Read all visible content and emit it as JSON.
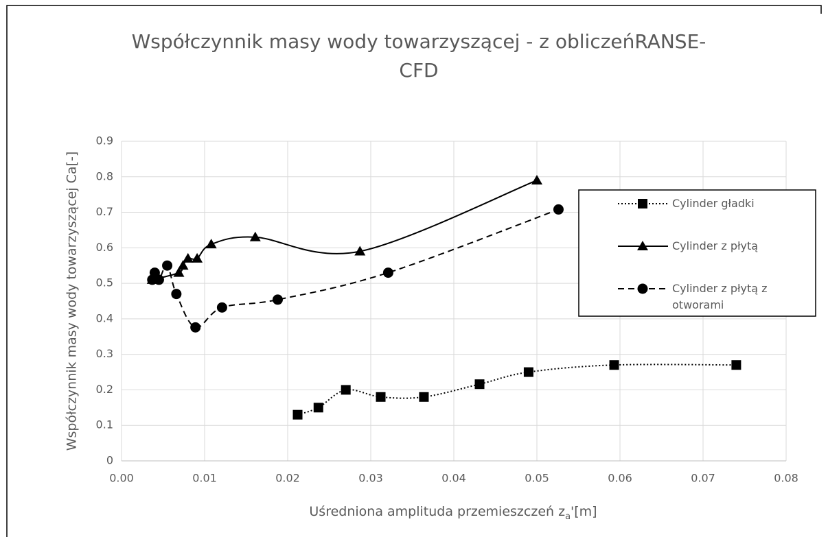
{
  "chart_data": {
    "type": "scatter",
    "title": [
      "Współczynnik masy wody towarzyszącej - z obliczeńRANSE-",
      "CFD"
    ],
    "x_label": {
      "text": "Uśredniona amplituda przemieszczeń z",
      "sub": "a",
      "suffix": "'[m]"
    },
    "y_label": "Współczynnik masy wody towarzyszącej Ca[-]",
    "xlim": [
      0,
      0.08
    ],
    "xticks": [
      {
        "value": 0,
        "label": "0.00"
      },
      0.01,
      0.02,
      0.03,
      0.04,
      0.05,
      0.06,
      0.07,
      0.08
    ],
    "ylim": [
      0,
      0.9
    ],
    "yticks": [
      0,
      0.1,
      0.2,
      0.3,
      0.4,
      0.5,
      0.6,
      0.7,
      0.8,
      0.9
    ],
    "grid": true,
    "legend": "right",
    "series": [
      {
        "name": "Cylinder gładki",
        "color": "#000000",
        "line": "dotted",
        "marker": "square",
        "x": [
          0.0212,
          0.0237,
          0.027,
          0.0312,
          0.0364,
          0.0431,
          0.049,
          0.0593,
          0.074
        ],
        "values": [
          0.13,
          0.15,
          0.2,
          0.18,
          0.18,
          0.216,
          0.25,
          0.27,
          0.27
        ]
      },
      {
        "name": "Cylinder z płytą",
        "color": "#000000",
        "line": "solid",
        "marker": "triangle",
        "x": [
          0.0037,
          0.0069,
          0.0074,
          0.008,
          0.0091,
          0.0108,
          0.0161,
          0.0287,
          0.05
        ],
        "values": [
          0.51,
          0.53,
          0.55,
          0.57,
          0.57,
          0.61,
          0.63,
          0.59,
          0.79
        ]
      },
      {
        "name": "Cylinder z płytą z otworami",
        "color": "#000000",
        "line": "dashed",
        "marker": "circle",
        "x": [
          0.0037,
          0.004,
          0.0045,
          0.0055,
          0.0066,
          0.0089,
          0.0121,
          0.0188,
          0.0321,
          0.0526
        ],
        "values": [
          0.51,
          0.53,
          0.51,
          0.55,
          0.47,
          0.376,
          0.432,
          0.454,
          0.53,
          0.708
        ]
      }
    ]
  }
}
